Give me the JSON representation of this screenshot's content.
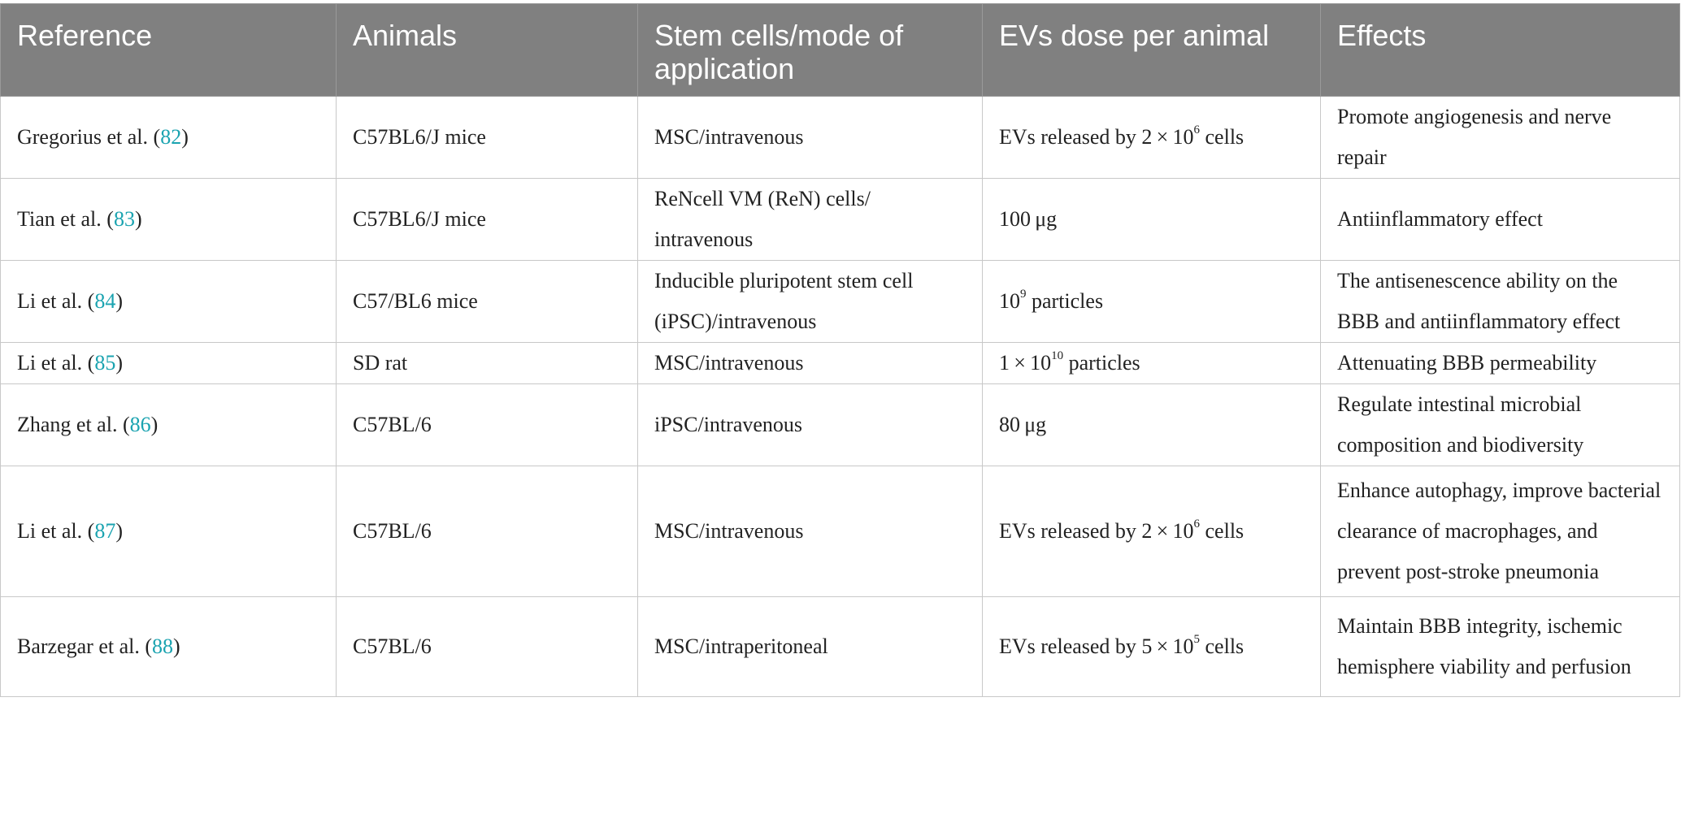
{
  "table": {
    "headers": [
      "Reference",
      "Animals",
      "Stem cells/mode of application",
      "EVs dose per animal",
      "Effects"
    ],
    "rows": [
      {
        "reference": {
          "author": "Gregorius et al.",
          "citation": "82"
        },
        "animals": "C57BL6/J mice",
        "stem_cells": "MSC/intravenous",
        "dose": {
          "prefix": "EVs released by 2 × 10",
          "exponent": "6",
          "suffix": " cells"
        },
        "effects": "Promote angiogenesis and nerve repair"
      },
      {
        "reference": {
          "author": "Tian et al.",
          "citation": "83"
        },
        "animals": "C57BL6/J mice",
        "stem_cells": "ReNcell VM (ReN) cells/ intravenous",
        "dose": {
          "prefix": "100 μg",
          "exponent": "",
          "suffix": ""
        },
        "effects": "Antiinflammatory effect"
      },
      {
        "reference": {
          "author": "Li et al.",
          "citation": "84"
        },
        "animals": "C57/BL6 mice",
        "stem_cells": "Inducible pluripotent stem cell (iPSC)/intravenous",
        "dose": {
          "prefix": "10",
          "exponent": "9",
          "suffix": " particles"
        },
        "effects": "The antisenescence ability on the BBB and antiinflammatory effect"
      },
      {
        "reference": {
          "author": "Li et al.",
          "citation": "85"
        },
        "animals": "SD rat",
        "stem_cells": "MSC/intravenous",
        "dose": {
          "prefix": "1 × 10",
          "exponent": "10",
          "suffix": " particles"
        },
        "effects": "Attenuating BBB permeability"
      },
      {
        "reference": {
          "author": "Zhang et al.",
          "citation": "86"
        },
        "animals": "C57BL/6",
        "stem_cells": "iPSC/intravenous",
        "dose": {
          "prefix": "80 μg",
          "exponent": "",
          "suffix": ""
        },
        "effects": "Regulate intestinal microbial composition and biodiversity"
      },
      {
        "reference": {
          "author": "Li et al.",
          "citation": "87"
        },
        "animals": "C57BL/6",
        "stem_cells": "MSC/intravenous",
        "dose": {
          "prefix": "EVs released by 2 × 10",
          "exponent": "6",
          "suffix": " cells"
        },
        "effects": "Enhance autophagy, improve bacterial clearance of macrophages, and prevent post-stroke pneumonia"
      },
      {
        "reference": {
          "author": "Barzegar et al.",
          "citation": "88"
        },
        "animals": "C57BL/6",
        "stem_cells": "MSC/intraperitoneal",
        "dose": {
          "prefix": "EVs released by 5 × 10",
          "exponent": "5",
          "suffix": " cells"
        },
        "effects": "Maintain BBB integrity, ischemic hemisphere viability and perfusion"
      }
    ]
  },
  "colors": {
    "header_bg": "#808080",
    "header_text": "#ffffff",
    "border": "#c8c8c8",
    "citation_link": "#1aa3b0",
    "body_text": "#222222"
  }
}
